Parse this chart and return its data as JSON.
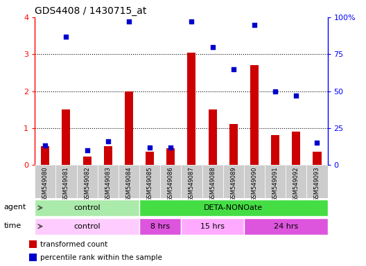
{
  "title": "GDS4408 / 1430715_at",
  "samples": [
    "GSM549080",
    "GSM549081",
    "GSM549082",
    "GSM549083",
    "GSM549084",
    "GSM549085",
    "GSM549086",
    "GSM549087",
    "GSM549088",
    "GSM549089",
    "GSM549090",
    "GSM549091",
    "GSM549092",
    "GSM549093"
  ],
  "transformed_count": [
    0.5,
    1.5,
    0.22,
    0.5,
    2.0,
    0.35,
    0.45,
    3.05,
    1.5,
    1.1,
    2.7,
    0.8,
    0.9,
    0.35
  ],
  "percentile_rank": [
    13,
    87,
    10,
    16,
    97,
    12,
    12,
    97,
    80,
    65,
    95,
    50,
    47,
    15
  ],
  "bar_color": "#cc0000",
  "dot_color": "#0000cc",
  "left_ylim": [
    0,
    4
  ],
  "right_ylim": [
    0,
    100
  ],
  "left_yticks": [
    0,
    1,
    2,
    3,
    4
  ],
  "right_yticks": [
    0,
    25,
    50,
    75,
    100
  ],
  "right_yticklabels": [
    "0",
    "25",
    "50",
    "75",
    "100%"
  ],
  "agent_groups": [
    {
      "label": "control",
      "start": 0,
      "end": 5,
      "color": "#aaeaaa"
    },
    {
      "label": "DETA-NONOate",
      "start": 5,
      "end": 14,
      "color": "#44dd44"
    }
  ],
  "time_groups": [
    {
      "label": "control",
      "start": 0,
      "end": 5,
      "color": "#ffccff"
    },
    {
      "label": "8 hrs",
      "start": 5,
      "end": 7,
      "color": "#dd55dd"
    },
    {
      "label": "15 hrs",
      "start": 7,
      "end": 10,
      "color": "#ffaaff"
    },
    {
      "label": "24 hrs",
      "start": 10,
      "end": 14,
      "color": "#dd55dd"
    }
  ],
  "legend_items": [
    {
      "label": "transformed count",
      "color": "#cc0000"
    },
    {
      "label": "percentile rank within the sample",
      "color": "#0000cc"
    }
  ],
  "xtick_bg": "#cccccc",
  "grid_color": "#000000",
  "border_color": "#888888"
}
